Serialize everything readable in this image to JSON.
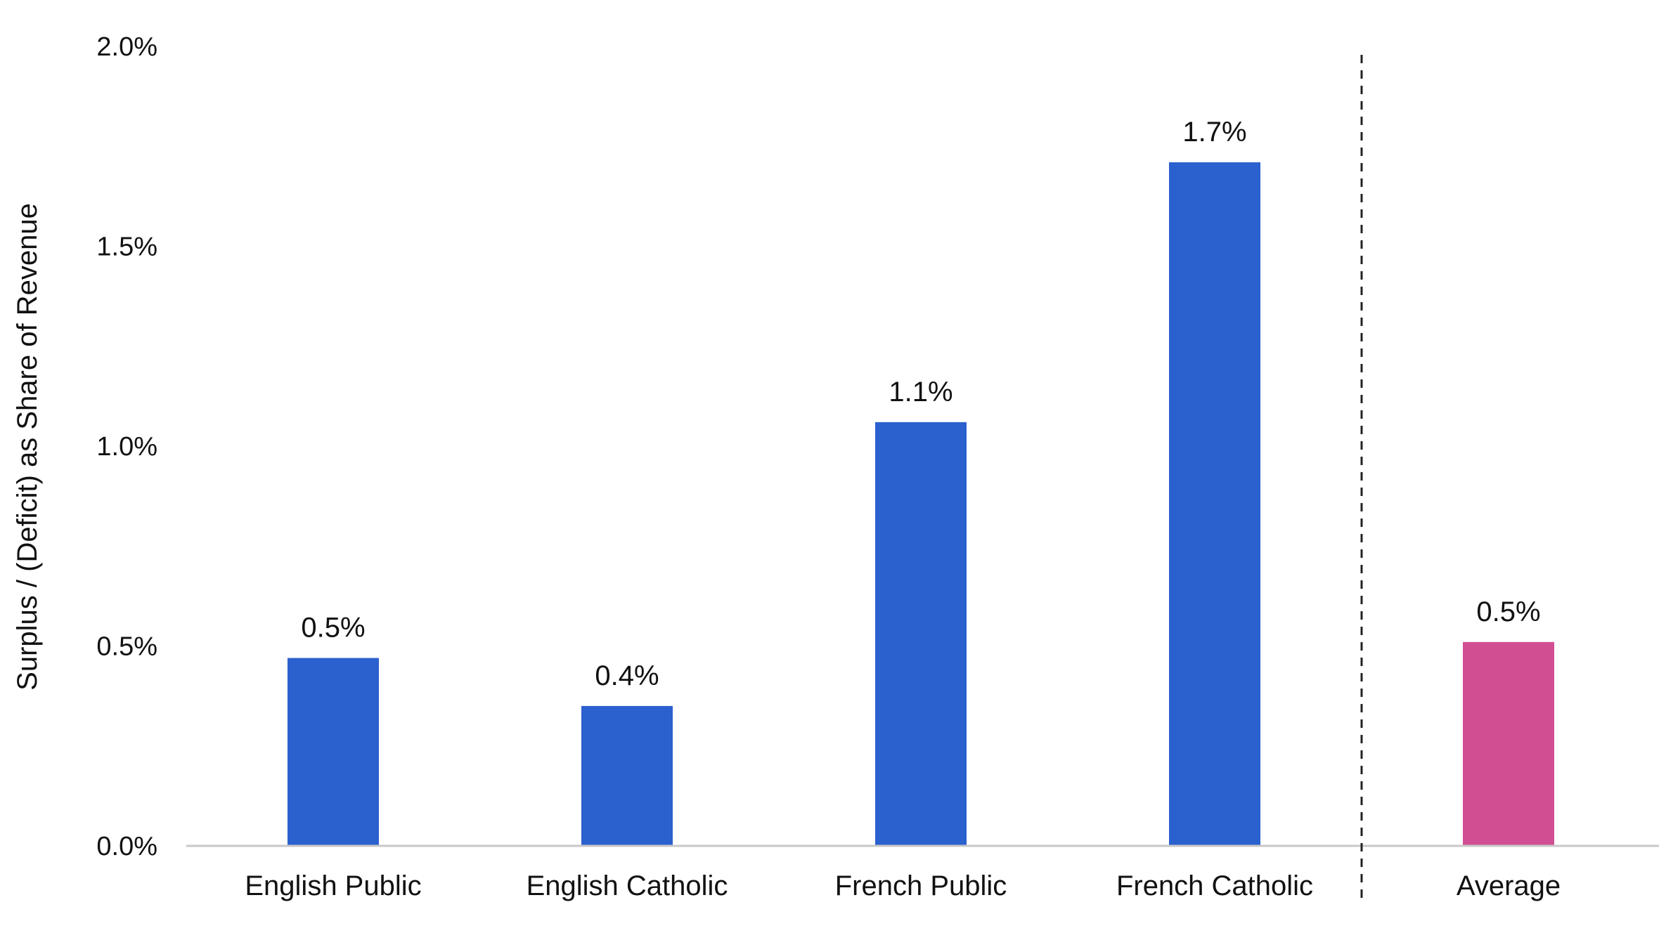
{
  "chart_data": {
    "type": "bar",
    "title": "",
    "xlabel": "",
    "ylabel": "Surplus / (Deficit) as Share of Revenue",
    "categories": [
      "English Public",
      "English Catholic",
      "French Public",
      "French Catholic",
      "Average"
    ],
    "values": [
      0.47,
      0.35,
      1.06,
      1.71,
      0.51
    ],
    "value_labels": [
      "0.5%",
      "0.4%",
      "1.1%",
      "1.7%",
      "0.5%"
    ],
    "ylim": [
      0,
      2.0
    ],
    "yticks": [
      0,
      0.5,
      1.0,
      1.5,
      2.0
    ],
    "ytick_labels": [
      "0.0%",
      "0.5%",
      "1.0%",
      "1.5%",
      "2.0%"
    ],
    "grid": false,
    "legend": "none",
    "separator_after_category": "French Catholic",
    "colors": {
      "bar": "#2b60cf",
      "average_bar": "#d14e93",
      "axis": "#c8c8c8",
      "separator": "#222222"
    }
  }
}
